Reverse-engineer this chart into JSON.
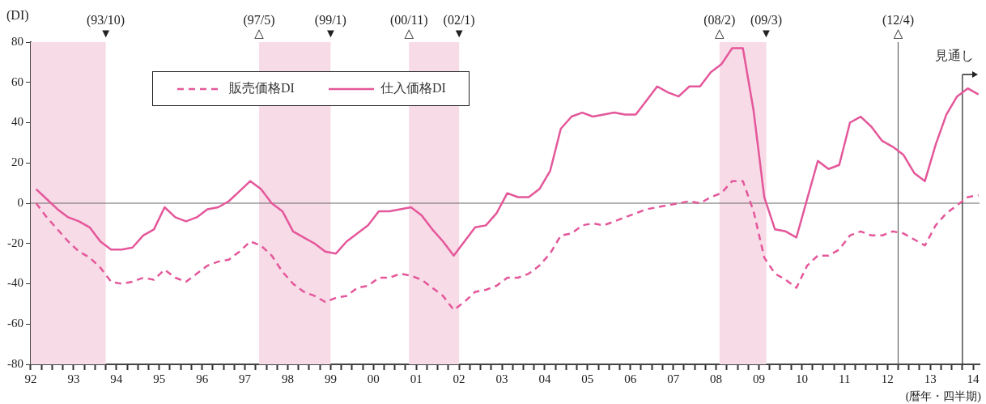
{
  "chart_data": {
    "type": "line",
    "ylabel": "(DI)",
    "xlabel": "(暦年・四半期)",
    "xlim": [
      1992,
      2014.15
    ],
    "ylim": [
      -80,
      80
    ],
    "yticks": [
      -80,
      -60,
      -40,
      -20,
      0,
      20,
      40,
      60,
      80
    ],
    "xticks": [
      {
        "value": 1992,
        "label": "92"
      },
      {
        "value": 1992.25,
        "label": null
      },
      {
        "value": 1992.5,
        "label": null
      },
      {
        "value": 1992.75,
        "label": null
      },
      {
        "value": 1993,
        "label": "93"
      },
      {
        "value": 1993.25,
        "label": null
      },
      {
        "value": 1993.5,
        "label": null
      },
      {
        "value": 1993.75,
        "label": null
      },
      {
        "value": 1994,
        "label": "94"
      },
      {
        "value": 1994.25,
        "label": null
      },
      {
        "value": 1994.5,
        "label": null
      },
      {
        "value": 1994.75,
        "label": null
      },
      {
        "value": 1995,
        "label": "95"
      },
      {
        "value": 1995.25,
        "label": null
      },
      {
        "value": 1995.5,
        "label": null
      },
      {
        "value": 1995.75,
        "label": null
      },
      {
        "value": 1996,
        "label": "96"
      },
      {
        "value": 1996.25,
        "label": null
      },
      {
        "value": 1996.5,
        "label": null
      },
      {
        "value": 1996.75,
        "label": null
      },
      {
        "value": 1997,
        "label": "97"
      },
      {
        "value": 1997.25,
        "label": null
      },
      {
        "value": 1997.5,
        "label": null
      },
      {
        "value": 1997.75,
        "label": null
      },
      {
        "value": 1998,
        "label": "98"
      },
      {
        "value": 1998.25,
        "label": null
      },
      {
        "value": 1998.5,
        "label": null
      },
      {
        "value": 1998.75,
        "label": null
      },
      {
        "value": 1999,
        "label": "99"
      },
      {
        "value": 1999.25,
        "label": null
      },
      {
        "value": 1999.5,
        "label": null
      },
      {
        "value": 1999.75,
        "label": null
      },
      {
        "value": 2000,
        "label": "00"
      },
      {
        "value": 2000.25,
        "label": null
      },
      {
        "value": 2000.5,
        "label": null
      },
      {
        "value": 2000.75,
        "label": null
      },
      {
        "value": 2001,
        "label": "01"
      },
      {
        "value": 2001.25,
        "label": null
      },
      {
        "value": 2001.5,
        "label": null
      },
      {
        "value": 2001.75,
        "label": null
      },
      {
        "value": 2002,
        "label": "02"
      },
      {
        "value": 2002.25,
        "label": null
      },
      {
        "value": 2002.5,
        "label": null
      },
      {
        "value": 2002.75,
        "label": null
      },
      {
        "value": 2003,
        "label": "03"
      },
      {
        "value": 2003.25,
        "label": null
      },
      {
        "value": 2003.5,
        "label": null
      },
      {
        "value": 2003.75,
        "label": null
      },
      {
        "value": 2004,
        "label": "04"
      },
      {
        "value": 2004.25,
        "label": null
      },
      {
        "value": 2004.5,
        "label": null
      },
      {
        "value": 2004.75,
        "label": null
      },
      {
        "value": 2005,
        "label": "05"
      },
      {
        "value": 2005.25,
        "label": null
      },
      {
        "value": 2005.5,
        "label": null
      },
      {
        "value": 2005.75,
        "label": null
      },
      {
        "value": 2006,
        "label": "06"
      },
      {
        "value": 2006.25,
        "label": null
      },
      {
        "value": 2006.5,
        "label": null
      },
      {
        "value": 2006.75,
        "label": null
      },
      {
        "value": 2007,
        "label": "07"
      },
      {
        "value": 2007.25,
        "label": null
      },
      {
        "value": 2007.5,
        "label": null
      },
      {
        "value": 2007.75,
        "label": null
      },
      {
        "value": 2008,
        "label": "08"
      },
      {
        "value": 2008.25,
        "label": null
      },
      {
        "value": 2008.5,
        "label": null
      },
      {
        "value": 2008.75,
        "label": null
      },
      {
        "value": 2009,
        "label": "09"
      },
      {
        "value": 2009.25,
        "label": null
      },
      {
        "value": 2009.5,
        "label": null
      },
      {
        "value": 2009.75,
        "label": null
      },
      {
        "value": 2010,
        "label": "10"
      },
      {
        "value": 2010.25,
        "label": null
      },
      {
        "value": 2010.5,
        "label": null
      },
      {
        "value": 2010.75,
        "label": null
      },
      {
        "value": 2011,
        "label": "11"
      },
      {
        "value": 2011.25,
        "label": null
      },
      {
        "value": 2011.5,
        "label": null
      },
      {
        "value": 2011.75,
        "label": null
      },
      {
        "value": 2012,
        "label": "12"
      },
      {
        "value": 2012.25,
        "label": null
      },
      {
        "value": 2012.5,
        "label": null
      },
      {
        "value": 2012.75,
        "label": null
      },
      {
        "value": 2013,
        "label": "13"
      },
      {
        "value": 2013.25,
        "label": null
      },
      {
        "value": 2013.5,
        "label": null
      },
      {
        "value": 2013.75,
        "label": null
      },
      {
        "value": 2014,
        "label": "14"
      }
    ],
    "x": [
      1992.125,
      1992.375,
      1992.625,
      1992.875,
      1993.125,
      1993.375,
      1993.625,
      1993.875,
      1994.125,
      1994.375,
      1994.625,
      1994.875,
      1995.125,
      1995.375,
      1995.625,
      1995.875,
      1996.125,
      1996.375,
      1996.625,
      1996.875,
      1997.125,
      1997.375,
      1997.625,
      1997.875,
      1998.125,
      1998.375,
      1998.625,
      1998.875,
      1999.125,
      1999.375,
      1999.625,
      1999.875,
      2000.125,
      2000.375,
      2000.625,
      2000.875,
      2001.125,
      2001.375,
      2001.625,
      2001.875,
      2002.125,
      2002.375,
      2002.625,
      2002.875,
      2003.125,
      2003.375,
      2003.625,
      2003.875,
      2004.125,
      2004.375,
      2004.625,
      2004.875,
      2005.125,
      2005.375,
      2005.625,
      2005.875,
      2006.125,
      2006.375,
      2006.625,
      2006.875,
      2007.125,
      2007.375,
      2007.625,
      2007.875,
      2008.125,
      2008.375,
      2008.625,
      2008.875,
      2009.125,
      2009.375,
      2009.625,
      2009.875,
      2010.125,
      2010.375,
      2010.625,
      2010.875,
      2011.125,
      2011.375,
      2011.625,
      2011.875,
      2012.125,
      2012.375,
      2012.625,
      2012.875,
      2013.125,
      2013.375,
      2013.625,
      2013.875,
      2014.125
    ],
    "series": [
      {
        "name": "販売価格DI",
        "color": "#e4579a",
        "line_style": "dashed",
        "values": [
          0,
          -7,
          -13,
          -19,
          -24,
          -27,
          -32,
          -39,
          -40,
          -39,
          -37,
          -38,
          -33,
          -37,
          -39,
          -35,
          -31,
          -29,
          -28,
          -24,
          -19,
          -21,
          -26,
          -34,
          -40,
          -44,
          -46,
          -49,
          -47,
          -46,
          -42,
          -41,
          -37,
          -37,
          -35,
          -36,
          -38,
          -42,
          -46,
          -53,
          -49,
          -44,
          -43,
          -41,
          -37,
          -37,
          -35,
          -31,
          -25,
          -16,
          -15,
          -11,
          -10,
          -11,
          -9,
          -7,
          -5,
          -3,
          -2,
          -1,
          0,
          1,
          0,
          3,
          5,
          11,
          11,
          -4,
          -27,
          -35,
          -38,
          -42,
          -31,
          -26,
          -26,
          -23,
          -16,
          -14,
          -16,
          -16,
          -14,
          -15,
          -18,
          -21,
          -11,
          -5,
          -1,
          3,
          4
        ]
      },
      {
        "name": "仕入価格DI",
        "color": "#e4579a",
        "line_style": "solid",
        "values": [
          7,
          2,
          -3,
          -7,
          -9,
          -12,
          -19,
          -23,
          -23,
          -22,
          -16,
          -13,
          -2,
          -7,
          -9,
          -7,
          -3,
          -2,
          1,
          6,
          11,
          7,
          0,
          -4,
          -14,
          -17,
          -20,
          -24,
          -25,
          -19,
          -15,
          -11,
          -4,
          -4,
          -3,
          -2,
          -6,
          -13,
          -19,
          -26,
          -19,
          -12,
          -11,
          -5,
          5,
          3,
          3,
          7,
          16,
          37,
          43,
          45,
          43,
          44,
          45,
          44,
          44,
          51,
          58,
          55,
          53,
          58,
          58,
          65,
          69,
          77,
          77,
          46,
          3,
          -13,
          -14,
          -17,
          2,
          21,
          17,
          19,
          40,
          43,
          38,
          31,
          28,
          24,
          15,
          11,
          29,
          44,
          53,
          57,
          54
        ]
      }
    ],
    "bands": [
      {
        "axis": "x",
        "from": 1992,
        "to": 1993.75,
        "color": "#f7dbe7"
      },
      {
        "axis": "x",
        "from": 1997.33,
        "to": 1999,
        "color": "#f7dbe7"
      },
      {
        "axis": "x",
        "from": 2000.83,
        "to": 2002,
        "color": "#f7dbe7"
      },
      {
        "axis": "x",
        "from": 2008.08,
        "to": 2009.17,
        "color": "#f7dbe7"
      }
    ],
    "ref_lines": [
      {
        "axis": "y",
        "value": 0,
        "color": "#666666"
      },
      {
        "axis": "x",
        "value": 2012.25,
        "color": "#666666"
      },
      {
        "axis": "x",
        "value": 2013.75,
        "label": "見通し",
        "color": "#222222"
      }
    ],
    "annotations": [
      {
        "text": "▼",
        "x": 1993.75,
        "y": 80
      },
      {
        "text": "(93/10)",
        "x": 1993.75,
        "y": 80
      },
      {
        "text": "△",
        "x": 1997.33,
        "y": 80
      },
      {
        "text": "(97/5)",
        "x": 1997.33,
        "y": 80
      },
      {
        "text": "▼",
        "x": 1999,
        "y": 80
      },
      {
        "text": "(99/1)",
        "x": 1999,
        "y": 80
      },
      {
        "text": "△",
        "x": 2000.83,
        "y": 80
      },
      {
        "text": "(00/11)",
        "x": 2000.83,
        "y": 80
      },
      {
        "text": "▼",
        "x": 2002,
        "y": 80
      },
      {
        "text": "(02/1)",
        "x": 2002,
        "y": 80
      },
      {
        "text": "△",
        "x": 2008.08,
        "y": 80
      },
      {
        "text": "(08/2)",
        "x": 2008.08,
        "y": 80
      },
      {
        "text": "▼",
        "x": 2009.17,
        "y": 80
      },
      {
        "text": "(09/3)",
        "x": 2009.17,
        "y": 80
      },
      {
        "text": "△",
        "x": 2012.25,
        "y": 80
      },
      {
        "text": "(12/4)",
        "x": 2012.25,
        "y": 80
      }
    ],
    "legend": "top left",
    "marker": "none",
    "grid": false
  }
}
